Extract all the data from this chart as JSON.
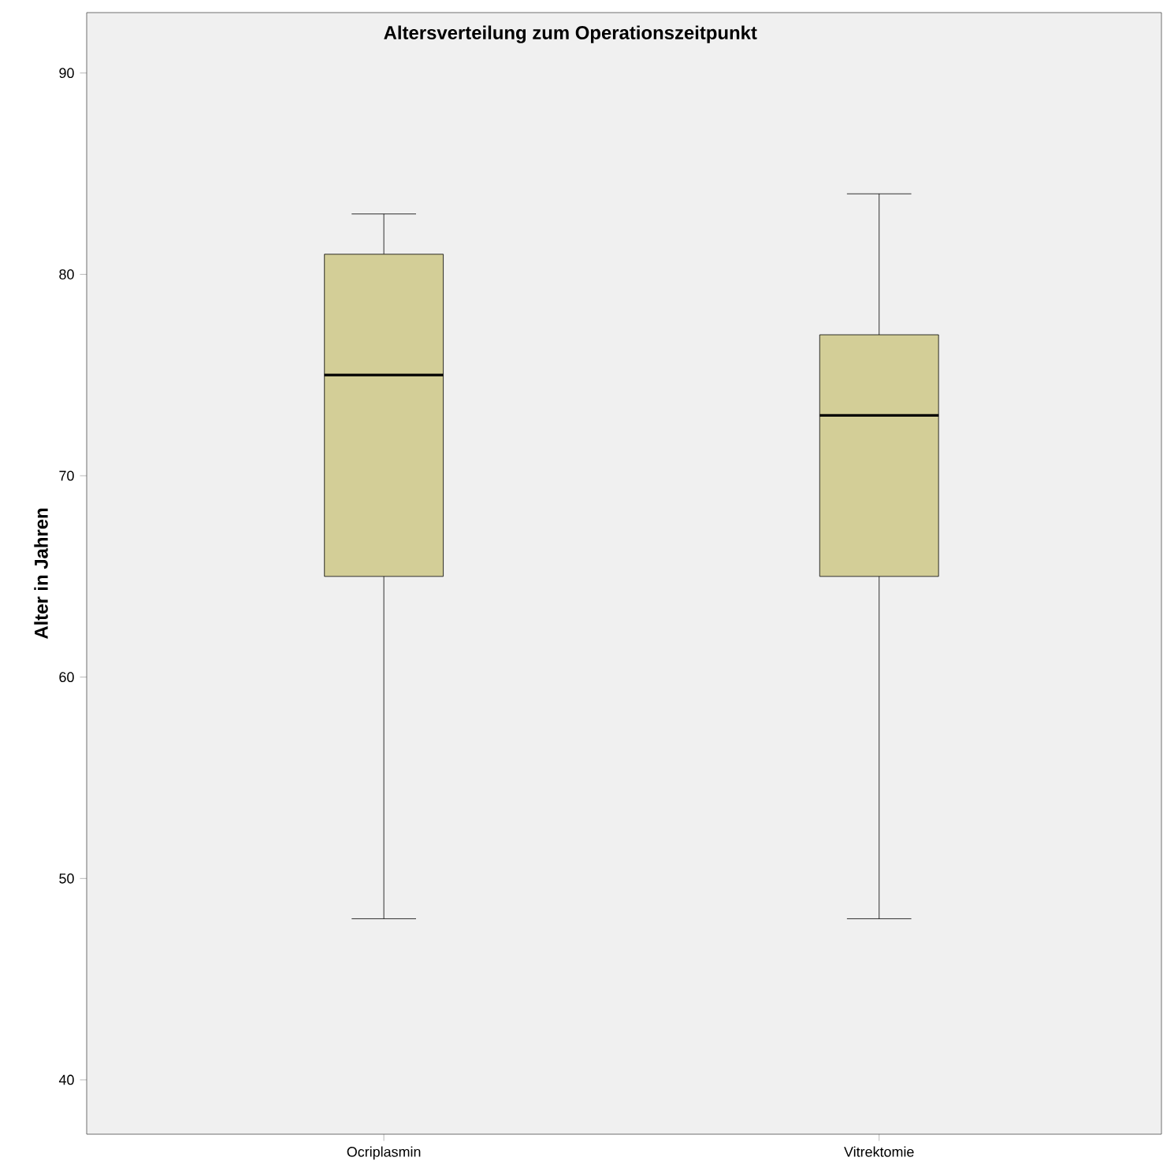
{
  "chart_data": {
    "type": "box",
    "title": "Altersverteilung zum Operationszeitpunkt",
    "ylabel": "Alter in Jahren",
    "categories": [
      "Ocriplasmin",
      "Vitrektomie"
    ],
    "boxes": [
      {
        "low": 48,
        "q1": 65,
        "median": 75,
        "q3": 81,
        "high": 83
      },
      {
        "low": 48,
        "q1": 65,
        "median": 73,
        "q3": 77,
        "high": 84
      }
    ],
    "color": "#d3ce97",
    "ylim": [
      37.3,
      93
    ],
    "yticks": [
      40,
      50,
      60,
      70,
      80,
      90
    ],
    "grid": false
  }
}
